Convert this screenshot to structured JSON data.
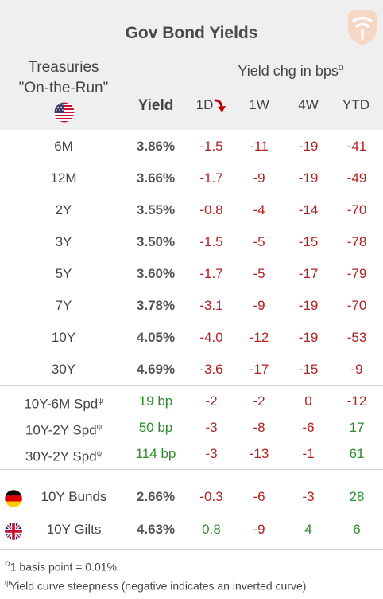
{
  "title": "Gov Bond Yields",
  "header": {
    "treasuries_line1": "Treasuries",
    "treasuries_line2": "\"On-the-Run\"",
    "yield": "Yield",
    "chg_label": "Yield chg in bps",
    "chg_sup": "Ω",
    "periods": [
      "1D",
      "1W",
      "4W",
      "YTD"
    ],
    "flag_icon": "us-flag-icon",
    "sort_icon": "arrow-down-icon"
  },
  "colors": {
    "negative": "#b22222",
    "positive": "#2e8b2e",
    "header_bg": "#efefef"
  },
  "maturities": [
    {
      "label": "6M",
      "yield": "3.86%",
      "d1": "-1.5",
      "w1": "-11",
      "w4": "-19",
      "ytd": "-41"
    },
    {
      "label": "12M",
      "yield": "3.66%",
      "d1": "-1.7",
      "w1": "-9",
      "w4": "-19",
      "ytd": "-49"
    },
    {
      "label": "2Y",
      "yield": "3.55%",
      "d1": "-0.8",
      "w1": "-4",
      "w4": "-14",
      "ytd": "-70"
    },
    {
      "label": "3Y",
      "yield": "3.50%",
      "d1": "-1.5",
      "w1": "-5",
      "w4": "-15",
      "ytd": "-78"
    },
    {
      "label": "5Y",
      "yield": "3.60%",
      "d1": "-1.7",
      "w1": "-5",
      "w4": "-17",
      "ytd": "-79"
    },
    {
      "label": "7Y",
      "yield": "3.78%",
      "d1": "-3.1",
      "w1": "-9",
      "w4": "-19",
      "ytd": "-70"
    },
    {
      "label": "10Y",
      "yield": "4.05%",
      "d1": "-4.0",
      "w1": "-12",
      "w4": "-19",
      "ytd": "-53"
    },
    {
      "label": "30Y",
      "yield": "4.69%",
      "d1": "-3.6",
      "w1": "-17",
      "w4": "-15",
      "ytd": "-9"
    }
  ],
  "spreads": [
    {
      "label": "10Y-6M Spd",
      "sup": "ψ",
      "value": "19 bp",
      "d1": "-2",
      "w1": "-2",
      "w4": "0",
      "ytd": "-12"
    },
    {
      "label": "10Y-2Y Spd",
      "sup": "ψ",
      "value": "50 bp",
      "d1": "-3",
      "w1": "-8",
      "w4": "-6",
      "ytd": "17"
    },
    {
      "label": "30Y-2Y Spd",
      "sup": "ψ",
      "value": "114 bp",
      "d1": "-3",
      "w1": "-13",
      "w4": "-1",
      "ytd": "61"
    }
  ],
  "foreign": [
    {
      "label": "10Y Bunds",
      "flag": "germany-flag-icon",
      "yield": "2.66%",
      "d1": "-0.3",
      "w1": "-6",
      "w4": "-3",
      "ytd": "28"
    },
    {
      "label": "10Y Gilts",
      "flag": "uk-flag-icon",
      "yield": "4.63%",
      "d1": "0.8",
      "w1": "-9",
      "w4": "4",
      "ytd": "6"
    }
  ],
  "footnotes": {
    "omega_sup": "Ω",
    "omega_text": "1 basis point = 0.01%",
    "psi_sup": "ψ",
    "psi_text": "Yield curve steepness (negative indicates an inverted curve)"
  }
}
